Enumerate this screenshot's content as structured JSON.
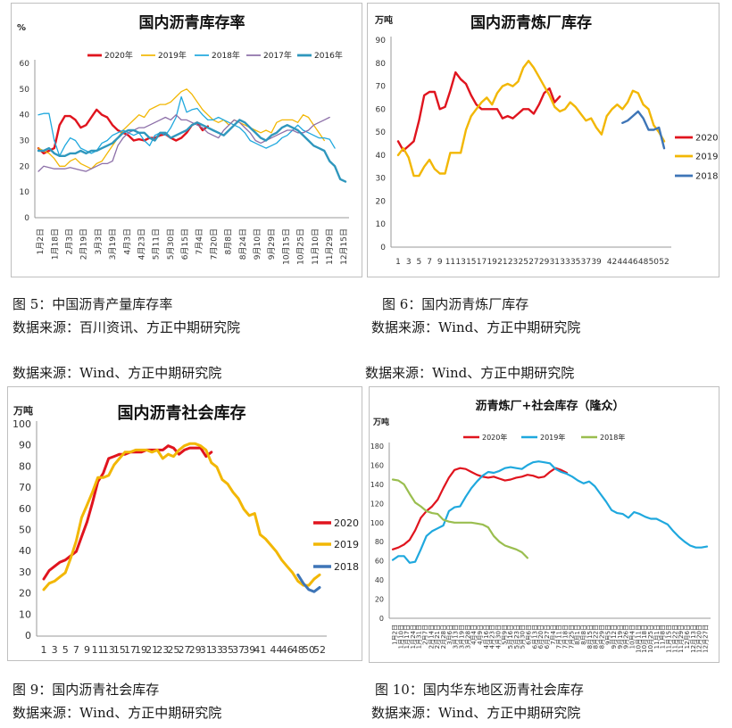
{
  "colors": {
    "y2020": "#e0141e",
    "y2019": "#f2b705",
    "y2018": "#1fa8de",
    "y2017": "#8c6fa8",
    "y2016": "#2f97bd",
    "y2018b": "#3e75b7",
    "y2018c": "#9abe4f"
  },
  "captions": {
    "c5": "图 5：中国沥青产量库存率",
    "s5": "数据来源：百川资讯、方正中期研究院",
    "c6": "图 6：国内沥青炼厂库存",
    "s6": "数据来源：Wind、方正中期研究院",
    "mid_left": "数据来源：Wind、方正中期研究院",
    "mid_right": "数据来源：Wind、方正中期研究院",
    "c9": "图 9：国内沥青社会库存",
    "s9": "数据来源：Wind、方正中期研究院",
    "c10": "图 10：国内华东地区沥青社会库存",
    "s10": "数据来源：Wind、方正中期研究院"
  },
  "chart_data": [
    {
      "id": "chart1",
      "type": "line",
      "title": "国内沥青库存率",
      "ylabel": "%",
      "ylim": [
        0,
        60
      ],
      "yticks": [
        0,
        10,
        20,
        30,
        40,
        50,
        60
      ],
      "xticks": [
        "1月2日",
        "1月18日",
        "2月3日",
        "2月19日",
        "3月3日",
        "3月19日",
        "4月3日",
        "4月23日",
        "5月11日",
        "5月30日",
        "6月15日",
        "7月4日",
        "7月20日",
        "8月8日",
        "8月24日",
        "9月10日",
        "9月29日",
        "10月15日",
        "10月25日",
        "11月10日",
        "11月29日",
        "12月15日"
      ],
      "legend": [
        "2020年",
        "2019年",
        "2018年",
        "2017年",
        "2016年"
      ],
      "series": [
        {
          "name": "2020年",
          "values": [
            27,
            25,
            26,
            27,
            36,
            39.5,
            39.5,
            38,
            35,
            36,
            39,
            42,
            40,
            39,
            36,
            34,
            33,
            32,
            30,
            30.5,
            30,
            31,
            31,
            32,
            32.5,
            31,
            30,
            31,
            33,
            36,
            37,
            34,
            35.5
          ]
        },
        {
          "name": "2019年",
          "values": [
            27,
            26,
            25,
            23,
            20,
            20,
            22,
            23,
            21,
            20,
            19,
            21,
            22,
            25,
            28,
            31,
            34,
            36,
            38,
            40,
            39,
            42,
            43,
            44,
            44,
            45,
            47,
            49,
            50,
            48,
            45,
            42,
            40,
            38,
            37,
            38,
            36,
            38,
            37,
            36,
            35,
            34,
            33,
            34,
            33,
            37,
            38,
            38,
            38,
            37,
            40,
            39,
            36,
            33,
            30
          ]
        },
        {
          "name": "2018年",
          "values": [
            40,
            40.5,
            40.5,
            30,
            24,
            28,
            31,
            30,
            27,
            26,
            25,
            26,
            29,
            30,
            32,
            33,
            34,
            33,
            32,
            33,
            30,
            28,
            32,
            33,
            32,
            35,
            39,
            47,
            41,
            42,
            42.5,
            40,
            38,
            38,
            39,
            38,
            37,
            36,
            35,
            33,
            30,
            29,
            28,
            27,
            28,
            29,
            31,
            32,
            34,
            36,
            34,
            33,
            32,
            31,
            31,
            30.5,
            27
          ]
        },
        {
          "name": "2017年",
          "values": [
            18,
            20,
            19.5,
            19,
            19,
            19,
            19.5,
            19,
            18.5,
            18,
            19,
            20,
            21,
            21,
            22,
            28,
            31,
            33,
            34,
            35,
            35,
            36,
            37,
            38,
            39,
            38,
            40,
            38,
            38,
            37,
            36,
            35,
            33,
            32,
            31,
            34,
            36,
            38,
            37,
            35,
            33,
            30,
            29,
            30,
            31,
            32,
            33,
            34,
            34,
            33,
            33,
            34,
            36,
            37,
            38,
            39
          ]
        },
        {
          "name": "2016年",
          "values": [
            26,
            26,
            27,
            25,
            24,
            24,
            25,
            25,
            26,
            25,
            26,
            26,
            27,
            28,
            29,
            31,
            33,
            34,
            34,
            33,
            33,
            31,
            30,
            33,
            33,
            31,
            32,
            33,
            34,
            36,
            37,
            36,
            35,
            34,
            33,
            32,
            34,
            36,
            38,
            37,
            35,
            33,
            31,
            30,
            32,
            33,
            35,
            36,
            35,
            34,
            32,
            30,
            28,
            27,
            26,
            22,
            20,
            15,
            14
          ]
        }
      ]
    },
    {
      "id": "chart2",
      "type": "line",
      "title": "国内沥青炼厂库存",
      "ylabel": "万吨",
      "ylim": [
        0,
        90
      ],
      "yticks": [
        0,
        10,
        20,
        30,
        40,
        50,
        60,
        70,
        80,
        90
      ],
      "xlim": [
        1,
        52
      ],
      "xticks": [
        "1",
        "3",
        "5",
        "7",
        "9",
        "11",
        "13",
        "15",
        "17",
        "19",
        "21",
        "23",
        "25",
        "27",
        "29",
        "31",
        "33",
        "35",
        "37",
        "39",
        "42",
        "44",
        "46",
        "48",
        "50",
        "52"
      ],
      "legend": [
        "2020",
        "2019",
        "2018"
      ],
      "series": [
        {
          "name": "2020",
          "x": [
            1,
            2,
            3,
            4,
            5,
            6,
            7,
            8,
            9,
            10,
            11,
            12,
            13,
            14,
            15,
            16,
            17,
            18,
            19,
            20,
            21,
            22,
            23,
            24,
            25,
            26,
            27,
            28,
            29,
            30,
            31,
            32
          ],
          "values": [
            46,
            42,
            44,
            46,
            55,
            66,
            67.5,
            67.5,
            60,
            61,
            68,
            76,
            73,
            71,
            66,
            62,
            60,
            60,
            60,
            60,
            56,
            57,
            56,
            58,
            60,
            60,
            58,
            62,
            67,
            69,
            63,
            65.5
          ]
        },
        {
          "name": "2019",
          "x": [
            1,
            2,
            3,
            4,
            5,
            6,
            7,
            8,
            9,
            10,
            11,
            12,
            13,
            14,
            15,
            16,
            17,
            18,
            19,
            20,
            21,
            22,
            23,
            24,
            25,
            26,
            27,
            28,
            29,
            30,
            31,
            32,
            33,
            34,
            35,
            36,
            37,
            38,
            39,
            40,
            41,
            42,
            43,
            44,
            45,
            46,
            47,
            48,
            49,
            50,
            51,
            52
          ],
          "values": [
            40,
            43,
            39,
            31,
            31,
            35,
            38,
            34,
            32,
            32,
            41,
            41,
            41,
            51,
            57,
            60,
            63,
            65,
            62,
            67,
            70,
            71,
            70,
            72,
            78,
            81,
            78,
            74,
            70,
            66,
            61,
            59,
            60,
            63,
            61,
            58,
            55,
            56,
            52,
            49,
            57,
            60,
            62,
            60,
            63,
            68,
            67,
            62,
            60,
            53,
            50,
            46
          ]
        },
        {
          "name": "2018",
          "x": [
            44,
            45,
            46,
            47,
            48,
            49,
            50,
            51,
            52
          ],
          "values": [
            54,
            55,
            57,
            59,
            56,
            51,
            51,
            52,
            43
          ]
        }
      ]
    },
    {
      "id": "chart3",
      "type": "line",
      "title": "国内沥青社会库存",
      "ylabel": "万吨",
      "ylim": [
        0,
        100
      ],
      "yticks": [
        0,
        10,
        20,
        30,
        40,
        50,
        60,
        70,
        80,
        90,
        100
      ],
      "xlim": [
        1,
        52
      ],
      "xticks": [
        "1",
        "3",
        "5",
        "7",
        "9",
        "11",
        "13",
        "15",
        "17",
        "19",
        "21",
        "23",
        "25",
        "27",
        "29",
        "31",
        "33",
        "35",
        "37",
        "39",
        "41",
        "44",
        "46",
        "48",
        "50",
        "52"
      ],
      "legend": [
        "2020",
        "2019",
        "2018"
      ],
      "series": [
        {
          "name": "2020",
          "x": [
            1,
            2,
            3,
            4,
            5,
            6,
            7,
            8,
            9,
            10,
            11,
            12,
            13,
            14,
            15,
            16,
            17,
            18,
            19,
            20,
            21,
            22,
            23,
            24,
            25,
            26,
            27,
            28,
            29,
            30,
            31,
            32
          ],
          "values": [
            27,
            31,
            33,
            35,
            36,
            38,
            40,
            47,
            54,
            63,
            73,
            77,
            84,
            85,
            86,
            86,
            87,
            87,
            87,
            88,
            88,
            88,
            88,
            90,
            89,
            86,
            88,
            89,
            89,
            89,
            85,
            87
          ]
        },
        {
          "name": "2019",
          "x": [
            1,
            2,
            3,
            4,
            5,
            6,
            7,
            8,
            9,
            10,
            11,
            12,
            13,
            14,
            15,
            16,
            17,
            18,
            19,
            20,
            21,
            22,
            23,
            24,
            25,
            26,
            27,
            28,
            29,
            30,
            31,
            32,
            33,
            34,
            35,
            36,
            37,
            38,
            39,
            40,
            41,
            42,
            43,
            44,
            45,
            46,
            47,
            48,
            49,
            50,
            51,
            52
          ],
          "values": [
            22,
            25,
            26,
            28,
            30,
            37,
            45,
            56,
            62,
            68,
            75,
            75,
            76,
            81,
            84,
            87,
            87,
            88,
            88,
            88,
            87,
            88,
            84,
            86,
            85,
            88,
            90,
            91,
            91,
            90,
            88,
            82,
            80,
            74,
            72,
            68,
            65,
            60,
            57,
            58,
            48,
            46,
            43,
            40,
            36,
            33,
            30,
            26,
            24,
            24,
            27,
            29
          ]
        },
        {
          "name": "2018",
          "x": [
            48,
            49,
            50,
            51,
            52
          ],
          "values": [
            29,
            25,
            22,
            21,
            23
          ]
        }
      ]
    },
    {
      "id": "chart4",
      "type": "line",
      "title": "沥青炼厂+社会库存（隆众）",
      "ylabel": "万吨",
      "ylim": [
        0,
        180
      ],
      "yticks": [
        0,
        20,
        40,
        60,
        80,
        100,
        120,
        140,
        160,
        180
      ],
      "xticks": [
        "1月2日",
        "1月10日",
        "1月17日",
        "1月24日",
        "1月31日",
        "2月7日",
        "2月14日",
        "2月21日",
        "2月28日",
        "3月6日",
        "3月13日",
        "3月19日",
        "3月28日",
        "4月4日",
        "4月9日",
        "4月16日",
        "4月23日",
        "4月30日",
        "5月9日",
        "5月16日",
        "5月23日",
        "5月30日",
        "6月6日",
        "6月13日",
        "6月20日",
        "6月27日",
        "7月4日",
        "7月11日",
        "7月18日",
        "7月25日",
        "8月1日",
        "8月8日",
        "8月15日",
        "8月22日",
        "8月29日",
        "9月5日",
        "9月12日",
        "9月19日",
        "9月26日",
        "10月4日",
        "10月11日",
        "10月18日",
        "10月25日",
        "11月1日",
        "11月8日",
        "11月15日",
        "11月22日",
        "11月29日",
        "12月6日",
        "12月13日",
        "12月20日",
        "12月27日"
      ],
      "legend": [
        "2020年",
        "2019年",
        "2018年"
      ],
      "series": [
        {
          "name": "2020年",
          "values": [
            72,
            74,
            77,
            82,
            92,
            105,
            112,
            117,
            124,
            136,
            147,
            155,
            157,
            156,
            153,
            150,
            148,
            147,
            148,
            146,
            144,
            145,
            147,
            148,
            150,
            149,
            147,
            148,
            153,
            157,
            155,
            152
          ]
        },
        {
          "name": "2019年",
          "values": [
            61,
            65,
            65,
            58,
            59,
            72,
            86,
            91,
            94,
            97,
            112,
            116,
            117,
            127,
            136,
            143,
            149,
            153,
            152,
            154,
            157,
            158,
            157,
            156,
            160,
            163,
            164,
            163,
            162,
            156,
            153,
            151,
            148,
            144,
            141,
            143,
            138,
            130,
            122,
            113,
            110,
            109,
            105,
            111,
            109,
            106,
            104,
            104,
            101,
            98,
            91,
            85,
            80,
            76,
            74,
            74,
            75
          ]
        },
        {
          "name": "2018年",
          "values": [
            145,
            144,
            140,
            130,
            121,
            117,
            112,
            110,
            109,
            103,
            101,
            100,
            100,
            100,
            100,
            99,
            98,
            95,
            86,
            80,
            76,
            74,
            72,
            69,
            63
          ]
        }
      ]
    }
  ]
}
